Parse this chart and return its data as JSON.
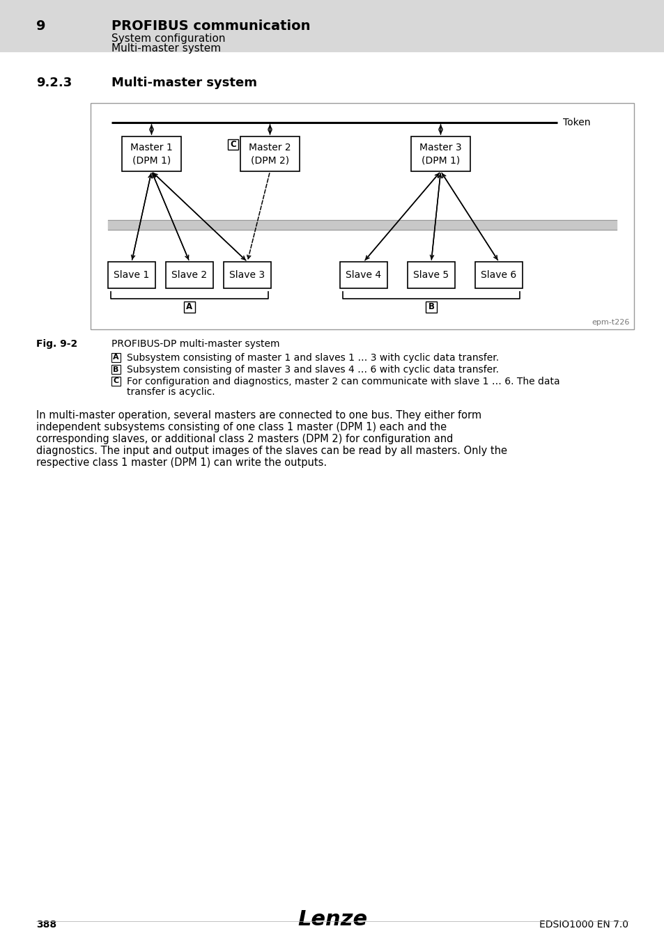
{
  "bg_color": "#e8e8e8",
  "white": "#ffffff",
  "black": "#000000",
  "gray_header_bg": "#d8d8d8",
  "header_number": "9",
  "header_title": "PROFIBUS communication",
  "header_sub1": "System configuration",
  "header_sub2": "Multi-master system",
  "section_number": "9.2.3",
  "section_title": "Multi-master system",
  "fig_label": "Fig. 9-2",
  "fig_caption": "PROFIBUS-DP multi-master system",
  "note_A": "Subsystem consisting of master 1 and slaves 1 … 3 with cyclic data transfer.",
  "note_B": "Subsystem consisting of master 3 and slaves 4 … 6 with cyclic data transfer.",
  "note_C_line1": "For configuration and diagnostics, master 2 can communicate with slave 1 … 6. The data",
  "note_C_line2": "transfer is acyclic.",
  "body_line1": "In multi-master operation, several masters are connected to one bus. They either form",
  "body_line2": "independent subsystems consisting of one class 1 master (DPM 1) each and the",
  "body_line3": "corresponding slaves, or additional class 2 masters (DPM 2) for configuration and",
  "body_line4": "diagnostics. The input and output images of the slaves can be read by all masters. Only the",
  "body_line5": "respective class 1 master (DPM 1) can write the outputs.",
  "footer_page": "388",
  "footer_doc": "EDSIO1000 EN 7.0",
  "epm_label": "epm-t226",
  "token_label": "Token",
  "slave_labels": [
    "Slave 1",
    "Slave 2",
    "Slave 3",
    "Slave 4",
    "Slave 5",
    "Slave 6"
  ],
  "master_labels": [
    [
      "Master 1",
      "(DPM 1)"
    ],
    [
      "Master 2",
      "(DPM 2)"
    ],
    [
      "Master 3",
      "(DPM 1)"
    ]
  ]
}
